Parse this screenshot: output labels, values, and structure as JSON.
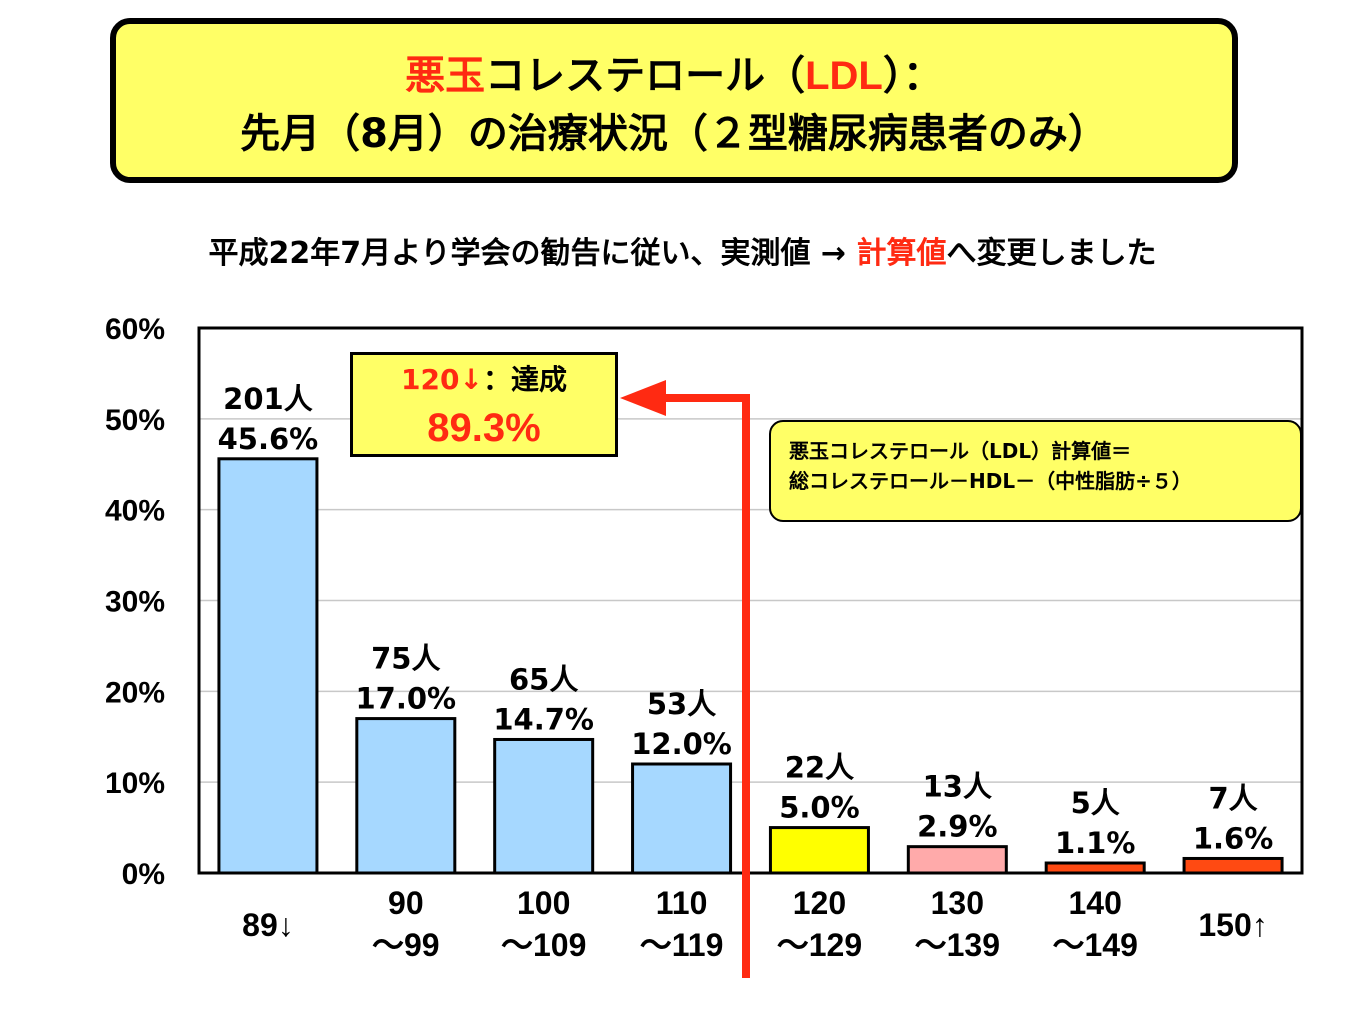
{
  "header": {
    "title_red_1": "悪玉",
    "title_black_1": "コレステロール（",
    "title_red_2": "LDL",
    "title_black_2": "）：",
    "title_line2": "先月（8月）の治療状況（２型糖尿病患者のみ）"
  },
  "subtitle": {
    "text_before": "平成22年7月より学会の勧告に従い、実測値 → ",
    "text_red": "計算値",
    "text_after": "へ変更しました"
  },
  "achievement": {
    "label_red": "120↓",
    "label_black": "：達成",
    "value": "89.3%"
  },
  "formula": {
    "line1": "悪玉コレステロール（LDL）計算値＝",
    "line2": "総コレステロール－HDL－（中性脂肪÷５）"
  },
  "colors": {
    "accent_red": "#ff2a12",
    "box_yellow": "#ffff66",
    "bar_blue": "#a6d8ff",
    "bar_yellow": "#ffff00",
    "bar_pink": "#ffaaaa",
    "bar_red": "#ff4a12"
  },
  "chart_data": {
    "type": "bar",
    "categories": [
      "89↓",
      "90\n～99",
      "100\n～109",
      "110\n～119",
      "120\n～129",
      "130\n～139",
      "140\n～149",
      "150↑"
    ],
    "values": [
      45.6,
      17.0,
      14.7,
      12.0,
      5.0,
      2.9,
      1.1,
      1.6
    ],
    "counts": [
      "201人",
      "75人",
      "65人",
      "53人",
      "22人",
      "13人",
      "5人",
      "7人"
    ],
    "value_labels": [
      "45.6%",
      "17.0%",
      "14.7%",
      "12.0%",
      "5.0%",
      "2.9%",
      "1.1%",
      "1.6%"
    ],
    "bar_colors": [
      "#a6d8ff",
      "#a6d8ff",
      "#a6d8ff",
      "#a6d8ff",
      "#ffff00",
      "#ffaaaa",
      "#ff4a12",
      "#ff4a12"
    ],
    "yticks": [
      "0%",
      "10%",
      "20%",
      "30%",
      "40%",
      "50%",
      "60%"
    ],
    "ylim": [
      0,
      60
    ],
    "grid": true,
    "title": "",
    "xlabel": "",
    "ylabel": ""
  }
}
